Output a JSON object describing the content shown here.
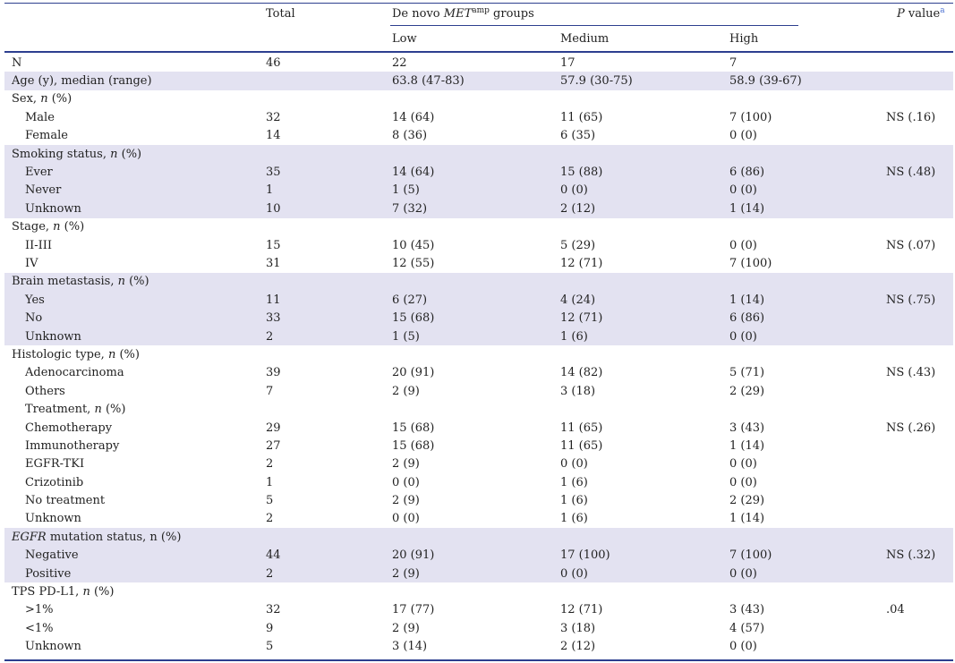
{
  "header": {
    "total": "Total",
    "groups_prefix": "De novo ",
    "groups_gene": "MET",
    "groups_sup": "amp",
    "groups_suffix": " groups",
    "low": "Low",
    "medium": "Medium",
    "high": "High",
    "pvalue_italic": "P",
    "pvalue_text": " value",
    "pvalue_sup": "a"
  },
  "rows": [
    {
      "label": "N",
      "label_italic": "",
      "label_suffix": "",
      "indent": false,
      "shaded": false,
      "total": "46",
      "low": "22",
      "medium": "17",
      "high": "7",
      "p": ""
    },
    {
      "label": "Age (y), median (range)",
      "label_italic": "",
      "label_suffix": "",
      "indent": false,
      "shaded": true,
      "total": "",
      "low": "63.8 (47-83)",
      "medium": "57.9 (30-75)",
      "high": "58.9 (39-67)",
      "p": ""
    },
    {
      "label": "Sex, ",
      "label_italic": "n",
      "label_suffix": " (%)",
      "indent": false,
      "shaded": false,
      "total": "",
      "low": "",
      "medium": "",
      "high": "",
      "p": ""
    },
    {
      "label": "Male",
      "label_italic": "",
      "label_suffix": "",
      "indent": true,
      "shaded": false,
      "total": "32",
      "low": "14 (64)",
      "medium": "11 (65)",
      "high": "7 (100)",
      "p": "NS (.16)"
    },
    {
      "label": "Female",
      "label_italic": "",
      "label_suffix": "",
      "indent": true,
      "shaded": false,
      "total": "14",
      "low": "8 (36)",
      "medium": "6 (35)",
      "high": "0 (0)",
      "p": ""
    },
    {
      "label": "Smoking status, ",
      "label_italic": "n",
      "label_suffix": " (%)",
      "indent": false,
      "shaded": true,
      "total": "",
      "low": "",
      "medium": "",
      "high": "",
      "p": ""
    },
    {
      "label": "Ever",
      "label_italic": "",
      "label_suffix": "",
      "indent": true,
      "shaded": true,
      "total": "35",
      "low": "14 (64)",
      "medium": "15 (88)",
      "high": "6 (86)",
      "p": "NS (.48)"
    },
    {
      "label": "Never",
      "label_italic": "",
      "label_suffix": "",
      "indent": true,
      "shaded": true,
      "total": "1",
      "low": "1 (5)",
      "medium": "0 (0)",
      "high": "0 (0)",
      "p": ""
    },
    {
      "label": "Unknown",
      "label_italic": "",
      "label_suffix": "",
      "indent": true,
      "shaded": true,
      "total": "10",
      "low": "7 (32)",
      "medium": "2 (12)",
      "high": "1 (14)",
      "p": ""
    },
    {
      "label": "Stage, ",
      "label_italic": "n",
      "label_suffix": " (%)",
      "indent": false,
      "shaded": false,
      "total": "",
      "low": "",
      "medium": "",
      "high": "",
      "p": ""
    },
    {
      "label": "II-III",
      "label_italic": "",
      "label_suffix": "",
      "indent": true,
      "shaded": false,
      "total": "15",
      "low": "10 (45)",
      "medium": "5 (29)",
      "high": "0 (0)",
      "p": "NS (.07)"
    },
    {
      "label": "IV",
      "label_italic": "",
      "label_suffix": "",
      "indent": true,
      "shaded": false,
      "total": "31",
      "low": "12 (55)",
      "medium": "12 (71)",
      "high": "7 (100)",
      "p": ""
    },
    {
      "label": "Brain metastasis, ",
      "label_italic": "n",
      "label_suffix": " (%)",
      "indent": false,
      "shaded": true,
      "total": "",
      "low": "",
      "medium": "",
      "high": "",
      "p": ""
    },
    {
      "label": "Yes",
      "label_italic": "",
      "label_suffix": "",
      "indent": true,
      "shaded": true,
      "total": "11",
      "low": "6 (27)",
      "medium": "4 (24)",
      "high": "1 (14)",
      "p": "NS (.75)"
    },
    {
      "label": "No",
      "label_italic": "",
      "label_suffix": "",
      "indent": true,
      "shaded": true,
      "total": "33",
      "low": "15 (68)",
      "medium": "12 (71)",
      "high": "6 (86)",
      "p": ""
    },
    {
      "label": "Unknown",
      "label_italic": "",
      "label_suffix": "",
      "indent": true,
      "shaded": true,
      "total": "2",
      "low": "1 (5)",
      "medium": "1 (6)",
      "high": "0 (0)",
      "p": ""
    },
    {
      "label": "Histologic type, ",
      "label_italic": "n",
      "label_suffix": " (%)",
      "indent": false,
      "shaded": false,
      "total": "",
      "low": "",
      "medium": "",
      "high": "",
      "p": ""
    },
    {
      "label": "Adenocarcinoma",
      "label_italic": "",
      "label_suffix": "",
      "indent": true,
      "shaded": false,
      "total": "39",
      "low": "20 (91)",
      "medium": "14 (82)",
      "high": "5 (71)",
      "p": "NS (.43)"
    },
    {
      "label": "Others",
      "label_italic": "",
      "label_suffix": "",
      "indent": true,
      "shaded": false,
      "total": "7",
      "low": "2 (9)",
      "medium": "3 (18)",
      "high": "2 (29)",
      "p": ""
    },
    {
      "label": "Treatment, ",
      "label_italic": "n",
      "label_suffix": " (%)",
      "indent": true,
      "shaded": false,
      "total": "",
      "low": "",
      "medium": "",
      "high": "",
      "p": ""
    },
    {
      "label": "Chemotherapy",
      "label_italic": "",
      "label_suffix": "",
      "indent": true,
      "shaded": false,
      "total": "29",
      "low": "15 (68)",
      "medium": "11 (65)",
      "high": "3 (43)",
      "p": "NS (.26)"
    },
    {
      "label": "Immunotherapy",
      "label_italic": "",
      "label_suffix": "",
      "indent": true,
      "shaded": false,
      "total": "27",
      "low": "15 (68)",
      "medium": "11 (65)",
      "high": "1 (14)",
      "p": ""
    },
    {
      "label": "EGFR-TKI",
      "label_italic": "",
      "label_suffix": "",
      "indent": true,
      "shaded": false,
      "total": "2",
      "low": "2 (9)",
      "medium": "0 (0)",
      "high": "0 (0)",
      "p": ""
    },
    {
      "label": "Crizotinib",
      "label_italic": "",
      "label_suffix": "",
      "indent": true,
      "shaded": false,
      "total": "1",
      "low": "0 (0)",
      "medium": "1 (6)",
      "high": "0 (0)",
      "p": ""
    },
    {
      "label": "No treatment",
      "label_italic": "",
      "label_suffix": "",
      "indent": true,
      "shaded": false,
      "total": "5",
      "low": "2 (9)",
      "medium": "1 (6)",
      "high": "2 (29)",
      "p": ""
    },
    {
      "label": "Unknown",
      "label_italic": "",
      "label_suffix": "",
      "indent": true,
      "shaded": false,
      "total": "2",
      "low": "0 (0)",
      "medium": "1 (6)",
      "high": "1 (14)",
      "p": ""
    },
    {
      "label": "",
      "label_italic": "EGFR",
      "label_suffix": " mutation status, n (%)",
      "indent": false,
      "shaded": true,
      "total": "",
      "low": "",
      "medium": "",
      "high": "",
      "p": ""
    },
    {
      "label": "Negative",
      "label_italic": "",
      "label_suffix": "",
      "indent": true,
      "shaded": true,
      "total": "44",
      "low": "20 (91)",
      "medium": "17 (100)",
      "high": "7 (100)",
      "p": "NS (.32)"
    },
    {
      "label": "Positive",
      "label_italic": "",
      "label_suffix": "",
      "indent": true,
      "shaded": true,
      "total": "2",
      "low": "2 (9)",
      "medium": "0 (0)",
      "high": "0 (0)",
      "p": ""
    },
    {
      "label": "TPS PD-L1, ",
      "label_italic": "n",
      "label_suffix": " (%)",
      "indent": false,
      "shaded": false,
      "total": "",
      "low": "",
      "medium": "",
      "high": "",
      "p": ""
    },
    {
      "label": ">1%",
      "label_italic": "",
      "label_suffix": "",
      "indent": true,
      "shaded": false,
      "total": "32",
      "low": "17 (77)",
      "medium": "12 (71)",
      "high": "3 (43)",
      "p": ".04"
    },
    {
      "label": "<1%",
      "label_italic": "",
      "label_suffix": "",
      "indent": true,
      "shaded": false,
      "total": "9",
      "low": "2 (9)",
      "medium": "3 (18)",
      "high": "4 (57)",
      "p": ""
    },
    {
      "label": "Unknown",
      "label_italic": "",
      "label_suffix": "",
      "indent": true,
      "shaded": false,
      "total": "5",
      "low": "3 (14)",
      "medium": "2 (12)",
      "high": "0 (0)",
      "p": ""
    }
  ],
  "colors": {
    "rule": "#2d3f8f",
    "shade": "#e3e2f1",
    "sup_link": "#4a6fd1"
  }
}
